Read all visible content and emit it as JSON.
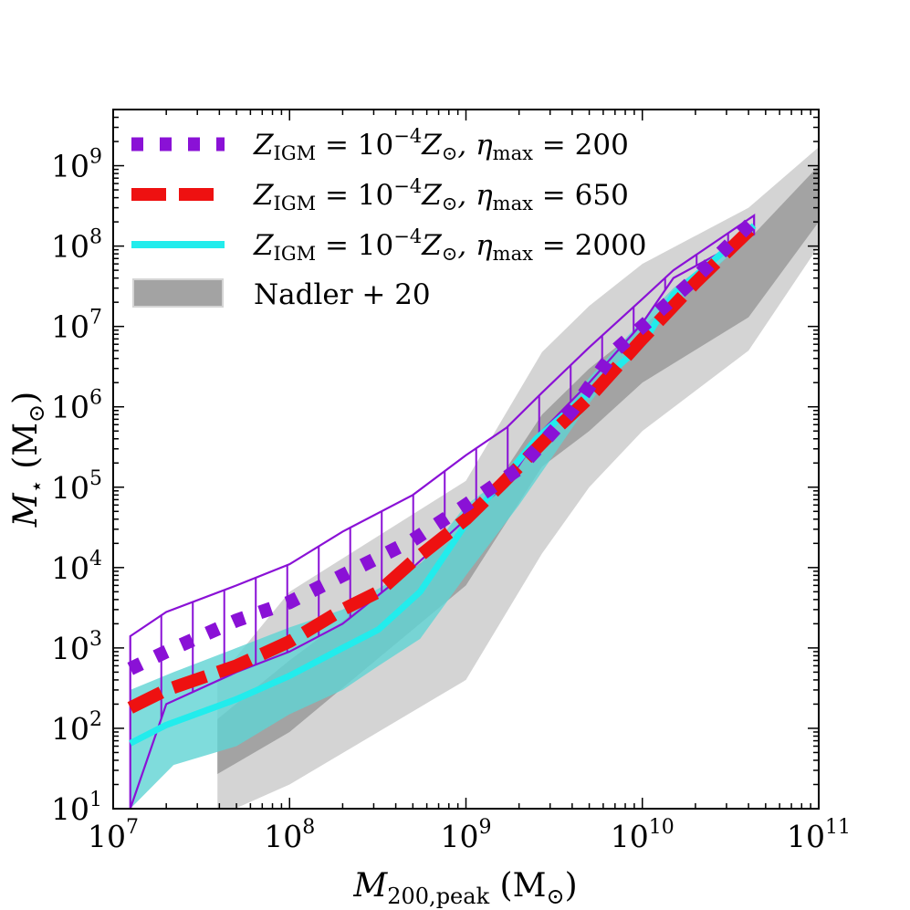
{
  "chart_data": {
    "type": "line",
    "xscale": "log",
    "yscale": "log",
    "xlim": [
      10000000.0,
      100000000000.0
    ],
    "ylim": [
      10,
      5000000000.0
    ],
    "xlabel_main": "M",
    "xlabel_sub": "200,peak",
    "xlabel_unit_open": " (M",
    "xlabel_unit_sym": "⊙",
    "xlabel_unit_close": ")",
    "ylabel_main": "M",
    "ylabel_sub": "⋆",
    "ylabel_unit_open": " (M",
    "ylabel_unit_sym": "⊙",
    "ylabel_unit_close": ")",
    "x_ticks": [
      {
        "value": 10000000.0,
        "base": "10",
        "exp": "7"
      },
      {
        "value": 100000000.0,
        "base": "10",
        "exp": "8"
      },
      {
        "value": 1000000000.0,
        "base": "10",
        "exp": "9"
      },
      {
        "value": 10000000000.0,
        "base": "10",
        "exp": "10"
      },
      {
        "value": 100000000000.0,
        "base": "10",
        "exp": "11"
      }
    ],
    "y_ticks": [
      {
        "value": 10,
        "base": "10",
        "exp": "1"
      },
      {
        "value": 100,
        "base": "10",
        "exp": "2"
      },
      {
        "value": 1000,
        "base": "10",
        "exp": "3"
      },
      {
        "value": 10000,
        "base": "10",
        "exp": "4"
      },
      {
        "value": 100000,
        "base": "10",
        "exp": "5"
      },
      {
        "value": 1000000,
        "base": "10",
        "exp": "6"
      },
      {
        "value": 10000000,
        "base": "10",
        "exp": "7"
      },
      {
        "value": 100000000,
        "base": "10",
        "exp": "8"
      },
      {
        "value": 1000000000,
        "base": "10",
        "exp": "9"
      }
    ],
    "bands": [
      {
        "name": "Nadler + 20 outer",
        "color": "#d4d4d4",
        "x": [
          39000000.0,
          100000000.0,
          1000000000.0,
          2700000000.0,
          5000000000.0,
          10000000000.0,
          40000000000.0,
          100000000000.0
        ],
        "lower": [
          8,
          20,
          400,
          15000,
          100000,
          500000,
          5000000,
          100000000
        ],
        "upper": [
          400,
          5000,
          120000,
          4800000,
          18000000,
          60000000,
          300000000,
          1700000000
        ]
      },
      {
        "name": "Nadler + 20 inner",
        "color": "#a3a3a3",
        "x": [
          39000000.0,
          100000000.0,
          1000000000.0,
          2700000000.0,
          5000000000.0,
          10000000000.0,
          40000000000.0,
          100000000000.0
        ],
        "lower": [
          27,
          90,
          6000,
          180000,
          500000,
          2000000,
          13000000,
          200000000
        ],
        "upper": [
          130,
          700,
          30000,
          800000,
          3000000,
          10000000,
          120000000,
          1000000000
        ]
      },
      {
        "name": "eta 2000 band",
        "color": "#5fd3d3",
        "x": [
          12500000.0,
          22000000.0,
          50000000.0,
          100000000.0,
          200000000.0,
          320000000.0,
          550000000.0,
          1000000000.0,
          2000000000.0,
          5000000000.0,
          10000000000.0,
          15000000000.0,
          43000000000.0
        ],
        "lower": [
          10,
          35,
          60,
          150,
          300,
          600,
          1300,
          8000,
          60000,
          1100000,
          8000000,
          17000000,
          150000000
        ],
        "upper": [
          300,
          500,
          1000,
          1800,
          3000,
          5500,
          11000,
          60000,
          180000,
          2300000,
          12000000,
          30000000,
          170000000
        ]
      }
    ],
    "hatch_band": {
      "name": "eta 200 band",
      "color": "#8a11d6",
      "x": [
        12500000.0,
        20000000.0,
        50000000.0,
        100000000.0,
        200000000.0,
        500000000.0,
        1000000000.0,
        1700000000.0,
        2700000000.0,
        5000000000.0,
        10000000000.0,
        15000000000.0,
        43000000000.0
      ],
      "lower": [
        10,
        200,
        500,
        900,
        2000,
        10000,
        40000,
        110000,
        500000,
        2000000,
        11000000,
        40000000,
        140000000
      ],
      "upper": [
        1400,
        2800,
        6000,
        11000,
        28000,
        80000,
        250000,
        550000,
        1500000,
        5500000,
        22000000,
        50000000,
        240000000
      ]
    },
    "series": [
      {
        "name": "Z_IGM = 10^-4 Z_⊙, η_max = 200",
        "style": "dotted",
        "color": "#8a11d6",
        "x": [
          12500000.0,
          20000000.0,
          50000000.0,
          100000000.0,
          200000000.0,
          500000000.0,
          1000000000.0,
          2000000000.0,
          4000000000.0,
          7000000000.0,
          10000000000.0,
          20000000000.0,
          42000000000.0
        ],
        "y": [
          550,
          900,
          2200,
          3700,
          8000,
          22000,
          60000,
          170000,
          900000,
          5000000,
          10000000,
          40000000,
          200000000
        ]
      },
      {
        "name": "Z_IGM = 10^-4 Z_⊙, η_max = 650",
        "style": "dashed",
        "color": "#ee1111",
        "x": [
          12500000.0,
          20000000.0,
          50000000.0,
          100000000.0,
          200000000.0,
          320000000.0,
          500000000.0,
          1000000000.0,
          1600000000.0,
          3000000000.0,
          5000000000.0,
          10000000000.0,
          20000000000.0,
          42000000000.0
        ],
        "y": [
          180,
          300,
          600,
          1200,
          3000,
          5000,
          12000,
          40000,
          110000,
          450000,
          1300000,
          7000000,
          35000000,
          170000000
        ]
      },
      {
        "name": "Z_IGM = 10^-4 Z_⊙, η_max = 2000",
        "style": "solid",
        "color": "#22ecec",
        "x": [
          12500000.0,
          20000000.0,
          50000000.0,
          100000000.0,
          200000000.0,
          320000000.0,
          550000000.0,
          1000000000.0,
          1500000000.0,
          2500000000.0,
          5000000000.0,
          10000000000.0,
          15000000000.0,
          43000000000.0
        ],
        "y": [
          65,
          110,
          230,
          450,
          1000,
          1700,
          5000,
          35000,
          100000,
          400000,
          1500000,
          6000000,
          25000000,
          180000000
        ]
      }
    ],
    "legend": {
      "placement": "top-left",
      "entries": [
        {
          "prefix": "Z",
          "sub": "IGM",
          "mid": " = 10",
          "sup": "−4",
          "z": "Z",
          "zsub": "⊙",
          "eta": ", η",
          "etasub": "max",
          "tail": " = 200"
        },
        {
          "prefix": "Z",
          "sub": "IGM",
          "mid": " = 10",
          "sup": "−4",
          "z": "Z",
          "zsub": "⊙",
          "eta": ", η",
          "etasub": "max",
          "tail": " = 650"
        },
        {
          "prefix": "Z",
          "sub": "IGM",
          "mid": " = 10",
          "sup": "−4",
          "z": "Z",
          "zsub": "⊙",
          "eta": ", η",
          "etasub": "max",
          "tail": " = 2000"
        },
        {
          "plain": "Nadler +  20"
        }
      ]
    }
  }
}
